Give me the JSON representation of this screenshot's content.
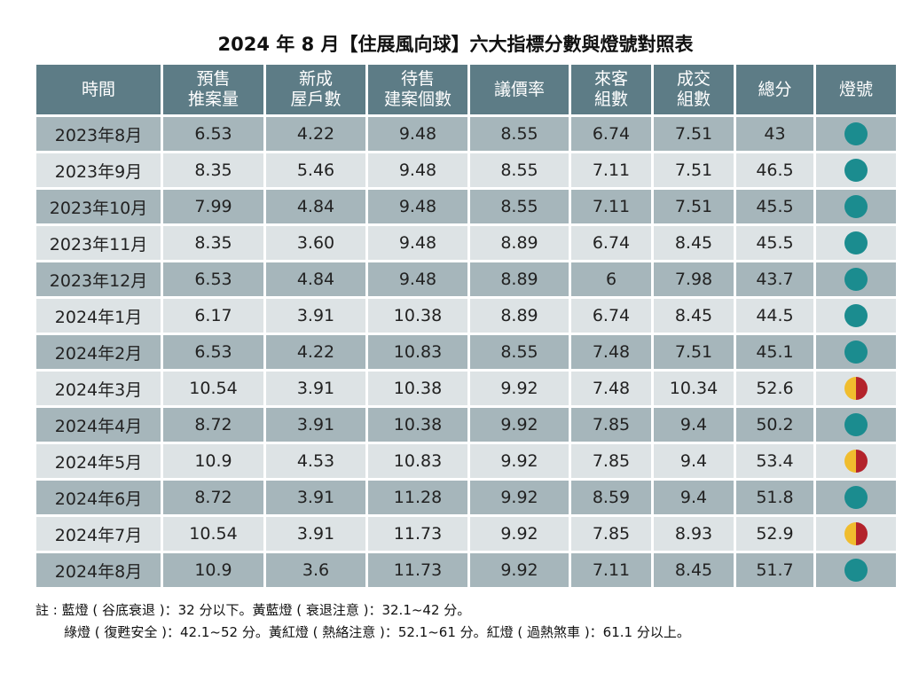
{
  "title": "2024 年 8 月【住展風向球】六大指標分數與燈號對照表",
  "table": {
    "header": [
      [
        "時間"
      ],
      [
        "預售",
        "推案量"
      ],
      [
        "新成",
        "屋戶數"
      ],
      [
        "待售",
        "建案個數"
      ],
      [
        "議價率"
      ],
      [
        "來客",
        "組數"
      ],
      [
        "成交",
        "組數"
      ],
      [
        "總分"
      ],
      [
        "燈號"
      ]
    ],
    "rows": [
      [
        "2023年8月",
        "6.53",
        "4.22",
        "9.48",
        "8.55",
        "6.74",
        "7.51",
        "43"
      ],
      [
        "2023年9月",
        "8.35",
        "5.46",
        "9.48",
        "8.55",
        "7.11",
        "7.51",
        "46.5"
      ],
      [
        "2023年10月",
        "7.99",
        "4.84",
        "9.48",
        "8.55",
        "7.11",
        "7.51",
        "45.5"
      ],
      [
        "2023年11月",
        "8.35",
        "3.60",
        "9.48",
        "8.89",
        "6.74",
        "8.45",
        "45.5"
      ],
      [
        "2023年12月",
        "6.53",
        "4.84",
        "9.48",
        "8.89",
        "6",
        "7.98",
        "43.7"
      ],
      [
        "2024年1月",
        "6.17",
        "3.91",
        "10.38",
        "8.89",
        "6.74",
        "8.45",
        "44.5"
      ],
      [
        "2024年2月",
        "6.53",
        "4.22",
        "10.83",
        "8.55",
        "7.48",
        "7.51",
        "45.1"
      ],
      [
        "2024年3月",
        "10.54",
        "3.91",
        "10.38",
        "9.92",
        "7.48",
        "10.34",
        "52.6"
      ],
      [
        "2024年4月",
        "8.72",
        "3.91",
        "10.38",
        "9.92",
        "7.85",
        "9.4",
        "50.2"
      ],
      [
        "2024年5月",
        "10.9",
        "4.53",
        "10.83",
        "9.92",
        "7.85",
        "9.4",
        "53.4"
      ],
      [
        "2024年6月",
        "8.72",
        "3.91",
        "11.28",
        "9.92",
        "8.59",
        "9.4",
        "51.8"
      ],
      [
        "2024年7月",
        "10.54",
        "3.91",
        "11.73",
        "9.92",
        "7.85",
        "8.93",
        "52.9"
      ],
      [
        "2024年8月",
        "10.9",
        "3.6",
        "11.73",
        "9.92",
        "7.11",
        "8.45",
        "51.7"
      ]
    ],
    "lights": [
      [
        "#1b8c8f"
      ],
      [
        "#1b8c8f"
      ],
      [
        "#1b8c8f"
      ],
      [
        "#1b8c8f"
      ],
      [
        "#1b8c8f"
      ],
      [
        "#1b8c8f"
      ],
      [
        "#1b8c8f"
      ],
      [
        "#f0bd2e",
        "#b3232b"
      ],
      [
        "#1b8c8f"
      ],
      [
        "#f0bd2e",
        "#b3232b"
      ],
      [
        "#1b8c8f"
      ],
      [
        "#f0bd2e",
        "#b3232b"
      ],
      [
        "#1b8c8f"
      ]
    ]
  },
  "notes": [
    "註 : 藍燈 ( 谷底衰退 )：32 分以下。黃藍燈 ( 衰退注意 )：32.1~42 分。",
    "綠燈 ( 復甦安全 )：42.1~52 分。黃紅燈 ( 熱絡注意 )：52.1~61 分。紅燈 ( 過熱煞車 )：61.1 分以上。"
  ]
}
